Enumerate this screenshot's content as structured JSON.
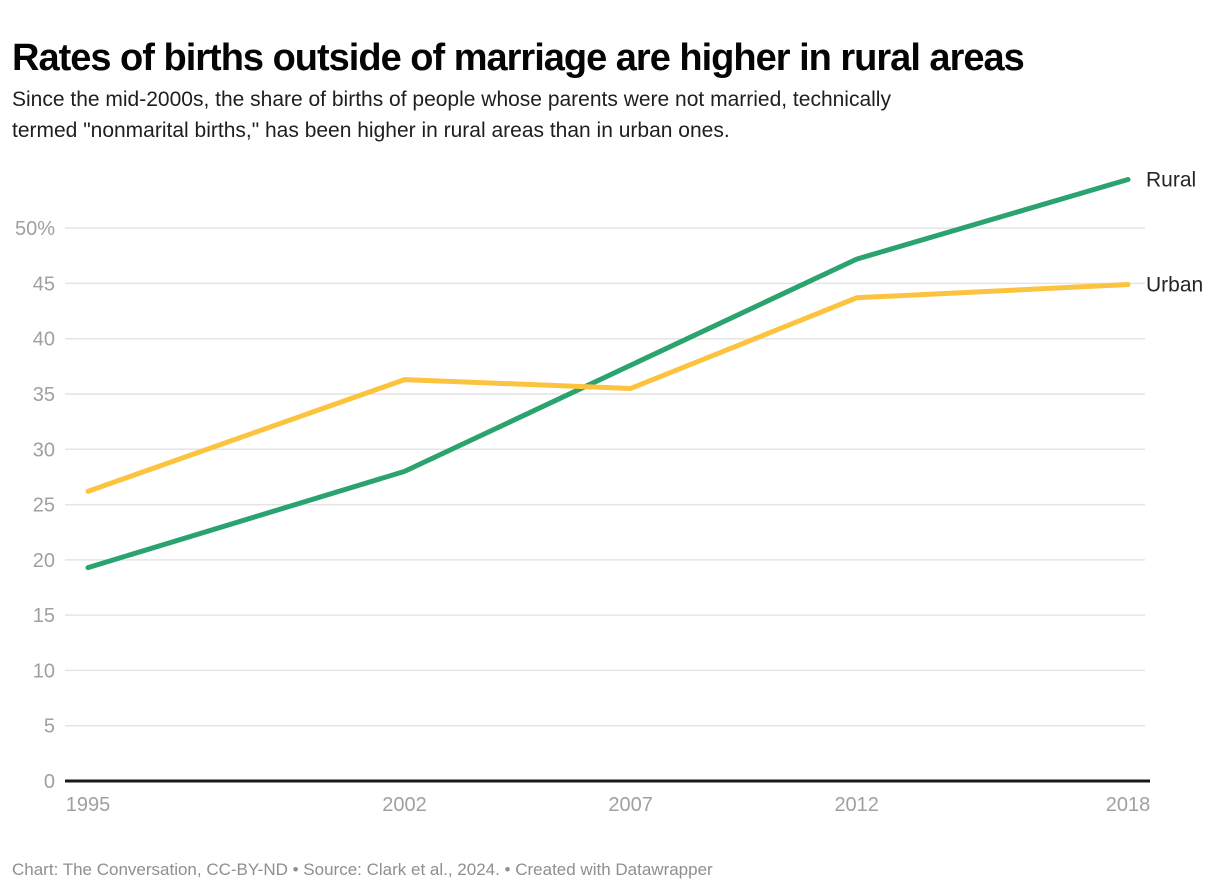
{
  "header": {
    "title": "Rates of births outside of marriage are higher in rural areas",
    "subtitle": "Since the mid-2000s, the share of births of people whose parents were not married, technically termed \"nonmarital births,\" has been higher in rural areas than in urban ones.",
    "subtitle_lines": [
      "Since the mid-2000s, the share of births of people whose parents were not married, technically",
      "termed \"nonmarital births,\" has been higher in rural areas than in urban ones."
    ]
  },
  "chart_data": {
    "type": "line",
    "title": "Rates of births outside of marriage are higher in rural areas",
    "xlabel": "",
    "ylabel": "",
    "x": [
      1995,
      2002,
      2007,
      2012,
      2018
    ],
    "x_tick_labels": [
      "1995",
      "2002",
      "2007",
      "2012",
      "2018"
    ],
    "y_ticks": [
      0,
      5,
      10,
      15,
      20,
      25,
      30,
      35,
      40,
      45,
      50
    ],
    "y_tick_labels": [
      "0",
      "5",
      "10",
      "15",
      "20",
      "25",
      "30",
      "35",
      "40",
      "45",
      "50%"
    ],
    "ylim": [
      0,
      55
    ],
    "grid": "horizontal",
    "legend_position": "end-of-line",
    "series": [
      {
        "name": "Rural",
        "color": "#2aa36e",
        "values": [
          19.3,
          28.0,
          37.6,
          47.2,
          54.4
        ]
      },
      {
        "name": "Urban",
        "color": "#fcc33f",
        "values": [
          26.2,
          36.3,
          35.5,
          43.7,
          44.9
        ]
      }
    ]
  },
  "footer": {
    "text": "Chart: The Conversation, CC-BY-ND • Source: Clark et al., 2024. • Created with Datawrapper"
  },
  "colors": {
    "grid": "#e4e4e4",
    "axis": "#1a1a1a",
    "tick_text": "#a0a0a0",
    "label_text": "#262626"
  }
}
